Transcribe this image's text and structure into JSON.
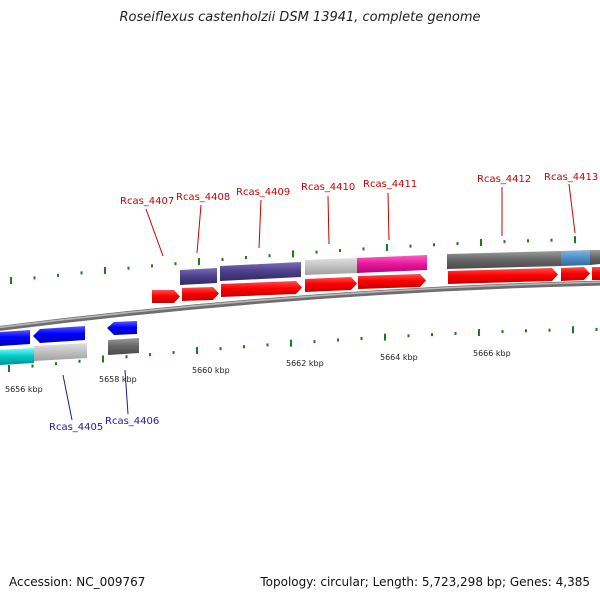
{
  "title": "Roseiflexus castenholzii DSM 13941, complete genome",
  "accession": "Accession: NC_009767",
  "topology": "Topology: circular; Length: 5,723,298 bp; Genes: 4,385",
  "position_labels": [
    "5656 kbp",
    "5658 kbp",
    "5660 kbp",
    "5662 kbp",
    "5664 kbp",
    "5666 kbp"
  ],
  "gene_labels_top": [
    "Rcas_4407",
    "Rcas_4408",
    "Rcas_4409",
    "Rcas_4410",
    "Rcas_4411",
    "Rcas_4412",
    "Rcas_4413"
  ],
  "gene_labels_bottom": [
    "Rcas_4405",
    "Rcas_4406"
  ],
  "colors": {
    "label_top": "#cc0000",
    "label_bottom": "#1a1aa6",
    "cds_forward": "#ff0000",
    "cds_reverse": "#0000ff",
    "feature_navy": "#4b3f8a",
    "feature_gray": "#666666",
    "feature_light_gray": "#c0c0c0",
    "feature_magenta": "#e8179b",
    "feature_teal": "#00c8c8",
    "feature_steel_blue": "#4f8fc6",
    "tick_green": "#1f7a1f",
    "backbone": "#808080"
  }
}
